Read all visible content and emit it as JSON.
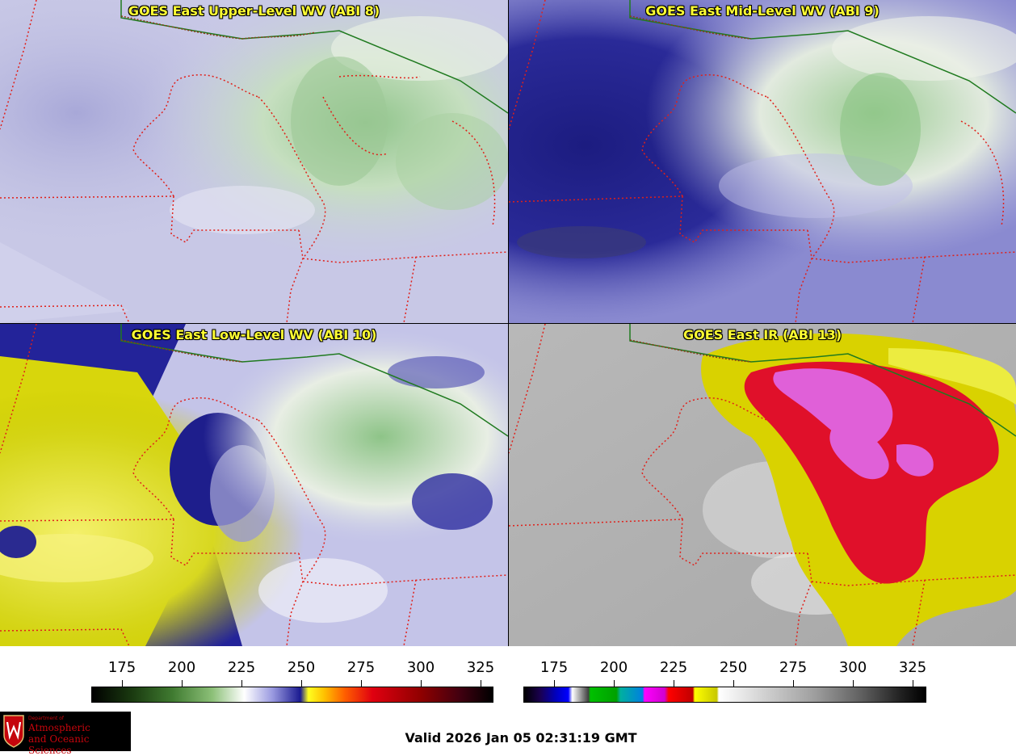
{
  "panels": [
    {
      "title": "GOES East Upper-Level WV (ABI 8)",
      "product": "upper-level-water-vapor"
    },
    {
      "title": "GOES East Mid-Level WV (ABI 9)",
      "product": "mid-level-water-vapor"
    },
    {
      "title": "GOES East Low-Level WV (ABI 10)",
      "product": "low-level-water-vapor"
    },
    {
      "title": "GOES East IR (ABI 13)",
      "product": "infrared-window"
    }
  ],
  "colorbars": {
    "wv": {
      "ticks": [
        "175",
        "200",
        "225",
        "250",
        "275",
        "300",
        "325"
      ]
    },
    "ir": {
      "ticks": [
        "175",
        "200",
        "225",
        "250",
        "275",
        "300",
        "325"
      ]
    }
  },
  "colors": {
    "state_borders": "#e0201a",
    "canada_border": "#1f7a1f",
    "lake_shore": "#8b3a1a"
  },
  "logo": {
    "department": "Department of",
    "line1": "Atmospheric",
    "line2": "and Oceanic Sciences"
  },
  "valid_time": "Valid 2026 Jan 05 02:31:19 GMT"
}
